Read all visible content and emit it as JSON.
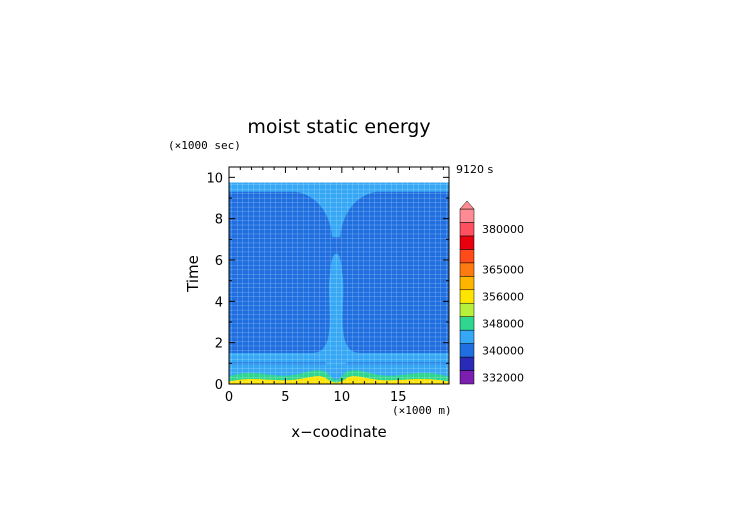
{
  "chart_data": {
    "type": "heatmap",
    "title": "moist static energy",
    "xlabel": "x−coodinate",
    "ylabel": "Time",
    "x_unit": "(×1000 m)",
    "y_unit": "(×1000 sec)",
    "time_stamp": "9120 s",
    "xlim": [
      0,
      19.5
    ],
    "ylim": [
      0,
      10.5
    ],
    "x_ticks": [
      "0",
      "5",
      "10",
      "15"
    ],
    "y_ticks": [
      "0",
      "2",
      "4",
      "6",
      "8",
      "10"
    ],
    "colorbar": {
      "levels": [
        {
          "value": 332000,
          "color": "#7a1fb0",
          "labeled": true
        },
        {
          "value": 336000,
          "color": "#2a2ab8",
          "labeled": false
        },
        {
          "value": 340000,
          "color": "#1f6fe0",
          "labeled": true
        },
        {
          "value": 344000,
          "color": "#35a7f5",
          "labeled": false
        },
        {
          "value": 348000,
          "color": "#2fd690",
          "labeled": true
        },
        {
          "value": 352000,
          "color": "#b7f03a",
          "labeled": false
        },
        {
          "value": 356000,
          "color": "#ffe400",
          "labeled": true
        },
        {
          "value": 360000,
          "color": "#ffb400",
          "labeled": false
        },
        {
          "value": 365000,
          "color": "#ff7a10",
          "labeled": true
        },
        {
          "value": 370000,
          "color": "#ff4a1a",
          "labeled": false
        },
        {
          "value": 375000,
          "color": "#e8000e",
          "labeled": false
        },
        {
          "value": 380000,
          "color": "#ff5060",
          "labeled": true
        },
        {
          "value": 385000,
          "color": "#ff8c94",
          "labeled": false
        }
      ],
      "label_format": "value"
    },
    "regions": [
      {
        "name": "blank-top",
        "color": "#ffffff"
      },
      {
        "name": "light-blue-band",
        "color": "#35a7f5"
      },
      {
        "name": "dark-blue-body",
        "color": "#1f6fe0"
      },
      {
        "name": "green-layer",
        "color": "#2fd690"
      },
      {
        "name": "yellow-layer",
        "color": "#ffe400"
      }
    ]
  }
}
